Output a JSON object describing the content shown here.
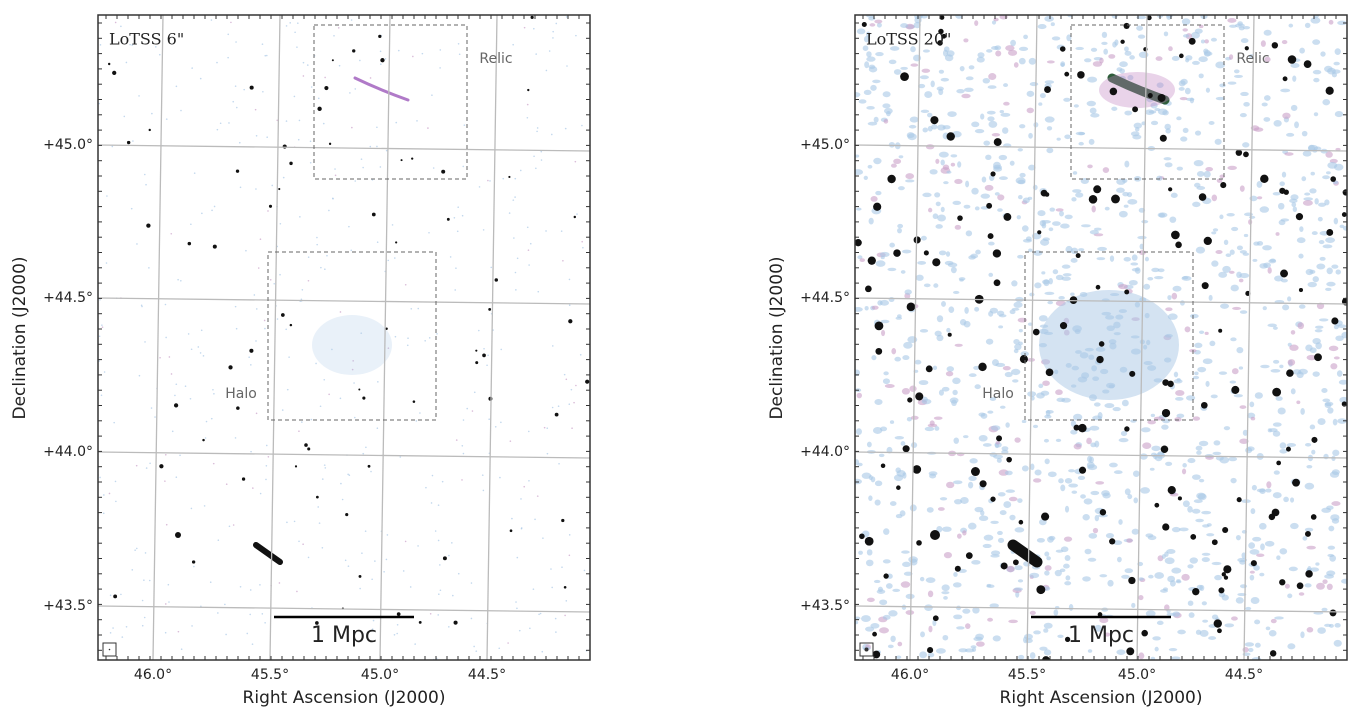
{
  "panels": [
    {
      "label": "LoTSS 6\"",
      "relic": "Relic",
      "halo": "Halo",
      "scale_bar": "1 Mpc",
      "x_axis_label": "Right Ascension (J2000)",
      "y_axis_label": "Declination (J2000)",
      "x_tick_labels": [
        "46.0°",
        "45.5°",
        "45.0°",
        "44.5°"
      ],
      "y_tick_labels": [
        "+45.0°",
        "+44.5°",
        "+44.0°",
        "+43.5°"
      ]
    },
    {
      "label": "LoTSS 20\"",
      "relic": "Relic",
      "halo": "Halo",
      "scale_bar": "1 Mpc",
      "x_axis_label": "Right Ascension (J2000)",
      "y_axis_label": "Declination (J2000)",
      "x_tick_labels": [
        "46.0°",
        "45.5°",
        "45.0°",
        "44.5°"
      ],
      "y_tick_labels": [
        "+45.0°",
        "+44.5°",
        "+44.0°",
        "+43.5°"
      ]
    }
  ]
}
